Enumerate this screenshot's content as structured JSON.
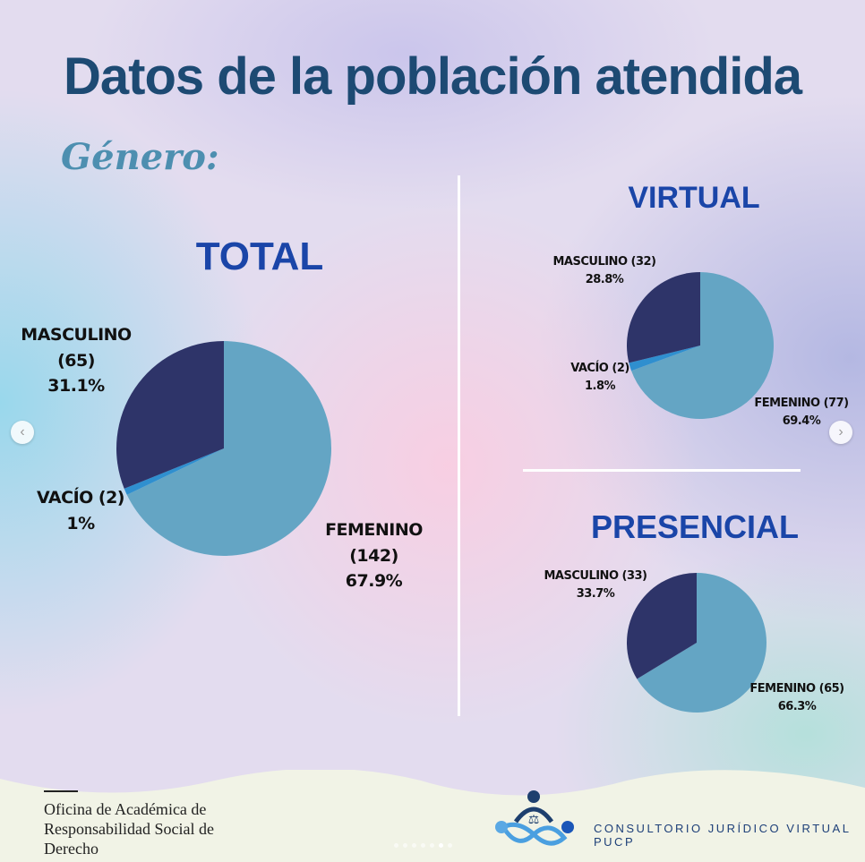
{
  "title": "Datos de la población atendida",
  "subtitle": "Género:",
  "colors": {
    "femenino": "#64a5c4",
    "vacio": "#2f8fcf",
    "masculino": "#2e3469"
  },
  "chart_data": [
    {
      "type": "pie",
      "title": "TOTAL",
      "slices": [
        {
          "label": "FEMENINO (142)",
          "name": "Femenino",
          "count": 142,
          "percent_label": "67.9%",
          "value": 67.9
        },
        {
          "label": "VACÍO (2)",
          "name": "Vacío",
          "count": 2,
          "percent_label": "1%",
          "value": 1.0
        },
        {
          "label": "MASCULINO (65)",
          "name": "Masculino",
          "count": 65,
          "percent_label": "31.1%",
          "value": 31.1
        }
      ]
    },
    {
      "type": "pie",
      "title": "VIRTUAL",
      "slices": [
        {
          "label": "FEMENINO (77)",
          "name": "Femenino",
          "count": 77,
          "percent_label": "69.4%",
          "value": 69.4
        },
        {
          "label": "VACÍO (2)",
          "name": "Vacío",
          "count": 2,
          "percent_label": "1.8%",
          "value": 1.8
        },
        {
          "label": "MASCULINO (32)",
          "name": "Masculino",
          "count": 32,
          "percent_label": "28.8%",
          "value": 28.8
        }
      ]
    },
    {
      "type": "pie",
      "title": "PRESENCIAL",
      "slices": [
        {
          "label": "FEMENINO (65)",
          "name": "Femenino",
          "count": 65,
          "percent_label": "66.3%",
          "value": 66.3
        },
        {
          "label": "MASCULINO (33)",
          "name": "Masculino",
          "count": 33,
          "percent_label": "33.7%",
          "value": 33.7
        }
      ]
    }
  ],
  "footer": {
    "office": [
      "Oficina de Académica de",
      "Responsabilidad Social de",
      "Derecho"
    ],
    "brand": "CONSULTORIO JURÍDICO VIRTUAL PUCP"
  },
  "nav": {
    "prev": "‹",
    "next": "›"
  }
}
